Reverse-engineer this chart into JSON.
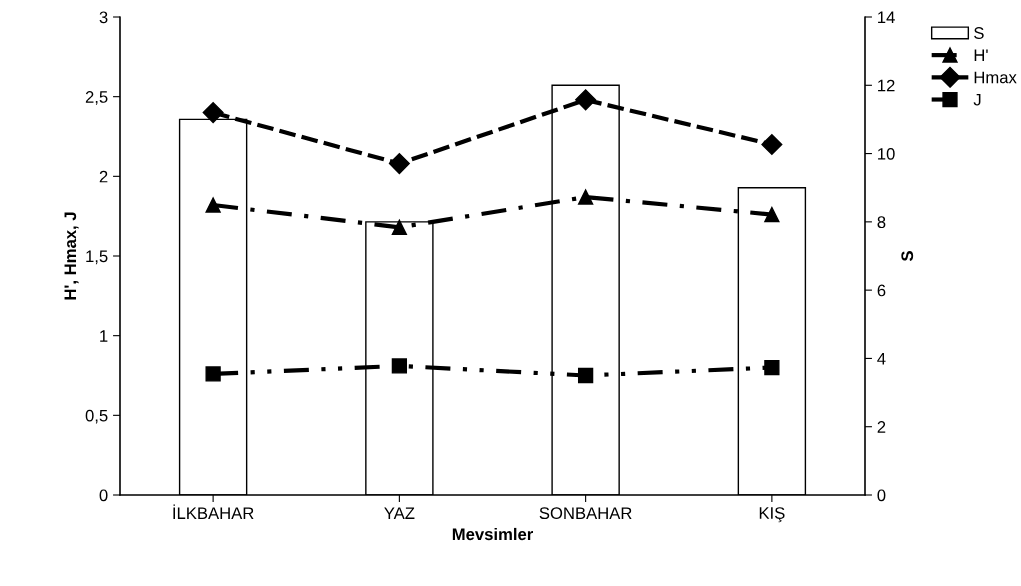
{
  "chart_data": {
    "type": "line",
    "xlabel": "Mevsimler",
    "ylabel": "H', Hmax, J",
    "y2label": "S",
    "categories": [
      "İLKBAHAR",
      "YAZ",
      "SONBAHAR",
      "KIŞ"
    ],
    "series": [
      {
        "name": "S",
        "type": "bar",
        "axis": "y2",
        "color": "#ffffff",
        "values": [
          11,
          8,
          12,
          9
        ]
      },
      {
        "name": "H'",
        "color": "#000000",
        "marker": "triangle",
        "line_style": "dashdot",
        "values": [
          1.82,
          1.68,
          1.87,
          1.76
        ]
      },
      {
        "name": "Hmax",
        "color": "#000000",
        "marker": "diamond",
        "line_style": "dashed",
        "values": [
          2.4,
          2.08,
          2.48,
          2.2
        ]
      },
      {
        "name": "J",
        "color": "#000000",
        "marker": "square",
        "line_style": "dashdotdot",
        "values": [
          0.76,
          0.81,
          0.75,
          0.8
        ]
      }
    ],
    "ylim": [
      0,
      3
    ],
    "yticks": [
      0,
      {
        "value": 0.5,
        "label": "0,5"
      },
      1,
      {
        "value": 1.5,
        "label": "1,5"
      },
      2,
      {
        "value": 2.5,
        "label": "2,5"
      },
      3
    ],
    "y2lim": [
      0,
      14
    ],
    "y2ticks": [
      0,
      2,
      4,
      6,
      8,
      10,
      12,
      14
    ],
    "grid": false,
    "legend": "top right"
  }
}
